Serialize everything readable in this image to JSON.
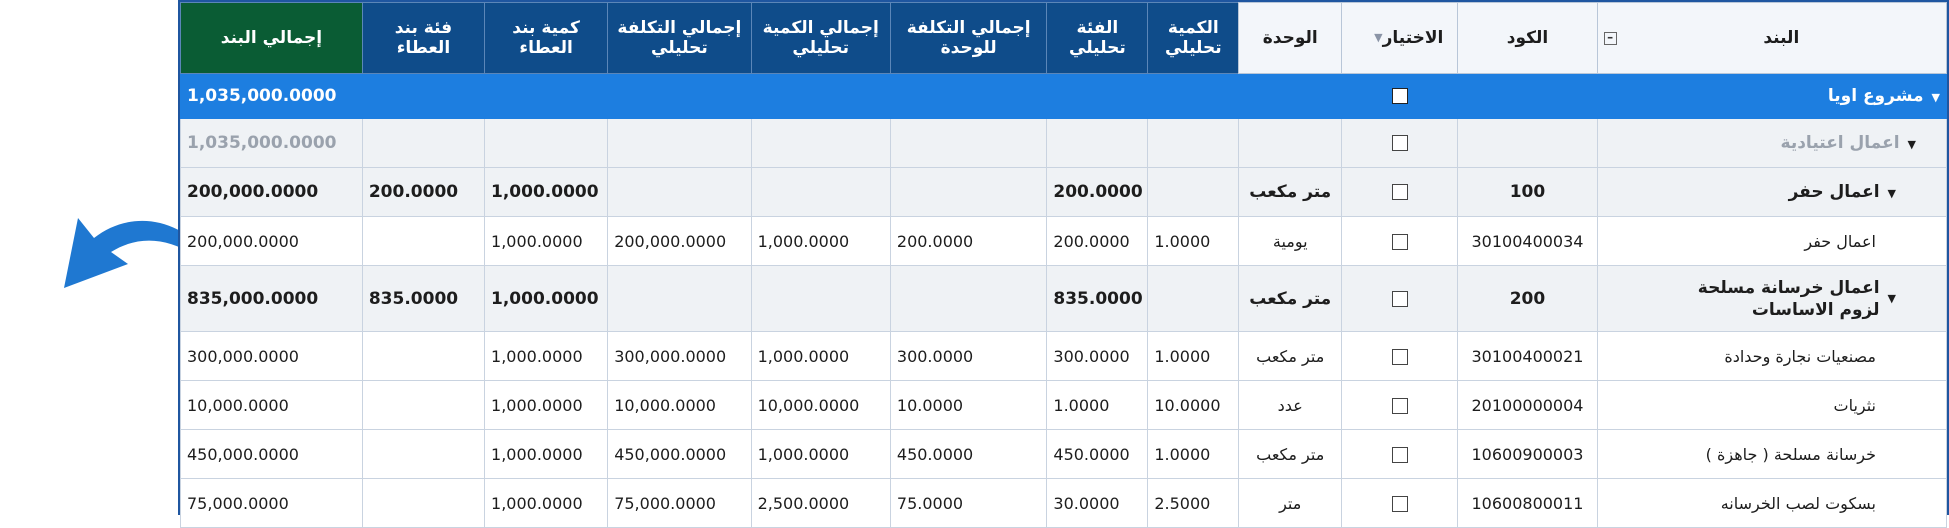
{
  "colors": {
    "header_blue": "#0f4c8a",
    "header_green": "#0a5c34",
    "selection": "#1d7ee0",
    "arrow": "#1f78d1"
  },
  "columns": {
    "item": "البند",
    "code": "الكود",
    "selection": "الاختيار",
    "unit": "الوحدة",
    "qty_analytic": "الكمية تحليلي",
    "rate_analytic": "الفئة تحليلي",
    "total_unit_cost": "إجمالي التكلفة للوحدة",
    "total_qty_analytic": "إجمالي الكمية تحليلي",
    "total_cost_analytic": "إجمالي التكلفة تحليلي",
    "tender_qty": "كمية بند العطاء",
    "tender_rate": "فئة بند العطاء",
    "item_total": "إجمالي البند"
  },
  "rows": [
    {
      "type": "project",
      "item": "مشروع اويا",
      "code": "",
      "unit": "",
      "qty_analytic": "",
      "rate_analytic": "",
      "total_unit_cost": "",
      "total_qty_analytic": "",
      "total_cost_analytic": "",
      "tender_qty": "",
      "tender_rate": "",
      "item_total": "1,035,000.0000"
    },
    {
      "type": "group1",
      "item": "اعمال اعتيادية",
      "code": "",
      "unit": "",
      "qty_analytic": "",
      "rate_analytic": "",
      "total_unit_cost": "",
      "total_qty_analytic": "",
      "total_cost_analytic": "",
      "tender_qty": "",
      "tender_rate": "",
      "item_total": "1,035,000.0000"
    },
    {
      "type": "group2",
      "item": "اعمال حفر",
      "code": "100",
      "unit": "متر مكعب",
      "qty_analytic": "",
      "rate_analytic": "200.0000",
      "total_unit_cost": "",
      "total_qty_analytic": "",
      "total_cost_analytic": "",
      "tender_qty": "1,000.0000",
      "tender_rate": "200.0000",
      "item_total": "200,000.0000"
    },
    {
      "type": "item",
      "item": "اعمال حفر",
      "code": "30100400034",
      "unit": "يومية",
      "qty_analytic": "1.0000",
      "rate_analytic": "200.0000",
      "total_unit_cost": "200.0000",
      "total_qty_analytic": "1,000.0000",
      "total_cost_analytic": "200,000.0000",
      "tender_qty": "1,000.0000",
      "tender_rate": "",
      "item_total": "200,000.0000"
    },
    {
      "type": "group3",
      "item": "اعمال خرسانة مسلحة لزوم الاساسات",
      "code": "200",
      "unit": "متر مكعب",
      "qty_analytic": "",
      "rate_analytic": "835.0000",
      "total_unit_cost": "",
      "total_qty_analytic": "",
      "total_cost_analytic": "",
      "tender_qty": "1,000.0000",
      "tender_rate": "835.0000",
      "item_total": "835,000.0000"
    },
    {
      "type": "item",
      "item": "مصنعيات نجارة وحدادة",
      "code": "30100400021",
      "unit": "متر مكعب",
      "qty_analytic": "1.0000",
      "rate_analytic": "300.0000",
      "total_unit_cost": "300.0000",
      "total_qty_analytic": "1,000.0000",
      "total_cost_analytic": "300,000.0000",
      "tender_qty": "1,000.0000",
      "tender_rate": "",
      "item_total": "300,000.0000"
    },
    {
      "type": "item",
      "item": "نثريات",
      "code": "20100000004",
      "unit": "عدد",
      "qty_analytic": "10.0000",
      "rate_analytic": "1.0000",
      "total_unit_cost": "10.0000",
      "total_qty_analytic": "10,000.0000",
      "total_cost_analytic": "10,000.0000",
      "tender_qty": "1,000.0000",
      "tender_rate": "",
      "item_total": "10,000.0000"
    },
    {
      "type": "item",
      "item": "خرسانة مسلحة ( جاهزة )",
      "code": "10600900003",
      "unit": "متر مكعب",
      "qty_analytic": "1.0000",
      "rate_analytic": "450.0000",
      "total_unit_cost": "450.0000",
      "total_qty_analytic": "1,000.0000",
      "total_cost_analytic": "450,000.0000",
      "tender_qty": "1,000.0000",
      "tender_rate": "",
      "item_total": "450,000.0000"
    },
    {
      "type": "item",
      "item": "بسكوت لصب الخرسانه",
      "code": "10600800011",
      "unit": "متر",
      "qty_analytic": "2.5000",
      "rate_analytic": "30.0000",
      "total_unit_cost": "75.0000",
      "total_qty_analytic": "2,500.0000",
      "total_cost_analytic": "75,000.0000",
      "tender_qty": "1,000.0000",
      "tender_rate": "",
      "item_total": "75,000.0000"
    }
  ]
}
